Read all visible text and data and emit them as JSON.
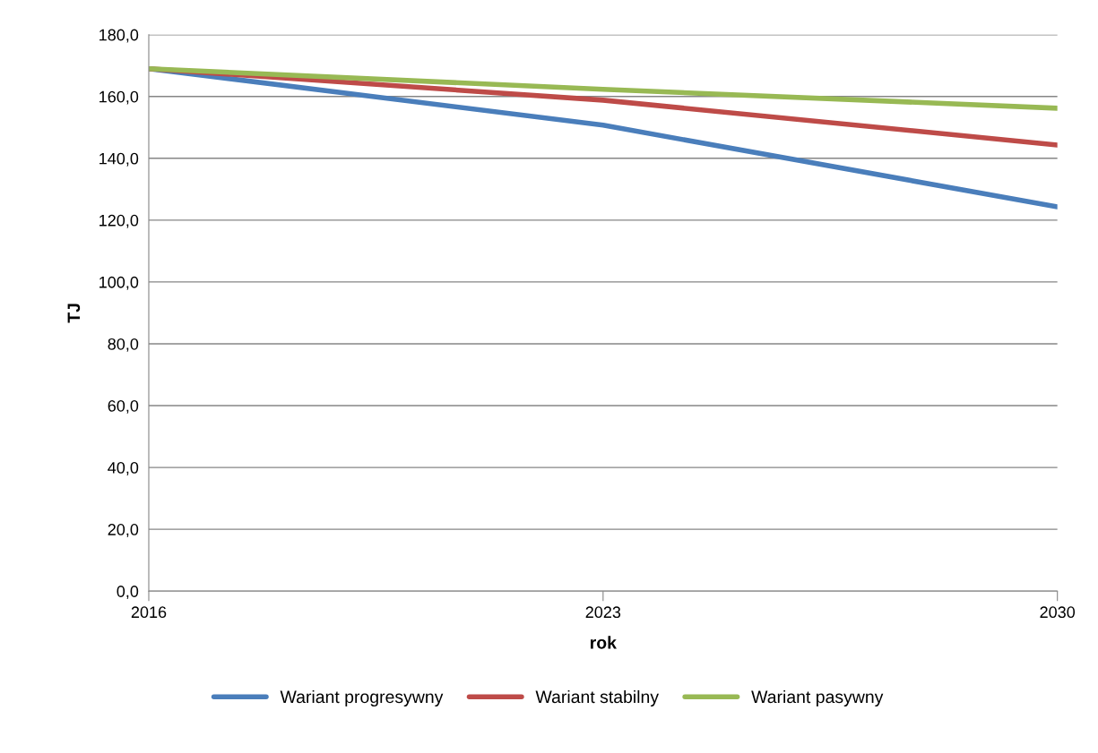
{
  "chart_data": {
    "type": "line",
    "xlabel": "rok",
    "ylabel": "TJ",
    "categories": [
      "2016",
      "2023",
      "2030"
    ],
    "series": [
      {
        "name": "Wariant progresywny",
        "color": "#4a7ebb",
        "values": [
          169.0,
          150.7,
          124.3
        ]
      },
      {
        "name": "Wariant stabilny",
        "color": "#be4b48",
        "values": [
          169.0,
          158.8,
          144.3
        ]
      },
      {
        "name": "Wariant pasywny",
        "color": "#98b954",
        "values": [
          169.0,
          162.3,
          156.2
        ]
      }
    ],
    "ylim": [
      0,
      180
    ],
    "yticks": [
      {
        "value": 0,
        "label": "0,0"
      },
      {
        "value": 20,
        "label": "20,0"
      },
      {
        "value": 40,
        "label": "40,0"
      },
      {
        "value": 60,
        "label": "60,0"
      },
      {
        "value": 80,
        "label": "80,0"
      },
      {
        "value": 100,
        "label": "100,0"
      },
      {
        "value": 120,
        "label": "120,0"
      },
      {
        "value": 140,
        "label": "140,0"
      },
      {
        "value": 160,
        "label": "160,0"
      },
      {
        "value": 180,
        "label": "180,0"
      }
    ],
    "grid": "y",
    "legend": "bottom",
    "marker": "none",
    "line_style": "solid"
  }
}
